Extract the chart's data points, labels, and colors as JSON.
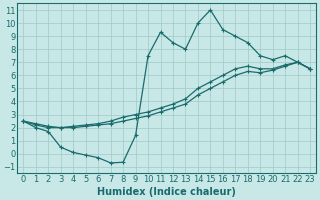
{
  "title": "",
  "xlabel": "Humidex (Indice chaleur)",
  "bg_color": "#c8e8e8",
  "line_color": "#1a6b6b",
  "marker": "+",
  "xlim": [
    -0.5,
    23.5
  ],
  "ylim": [
    -1.5,
    11.5
  ],
  "xticks": [
    0,
    1,
    2,
    3,
    4,
    5,
    6,
    7,
    8,
    9,
    10,
    11,
    12,
    13,
    14,
    15,
    16,
    17,
    18,
    19,
    20,
    21,
    22,
    23
  ],
  "yticks": [
    -1,
    0,
    1,
    2,
    3,
    4,
    5,
    6,
    7,
    8,
    9,
    10,
    11
  ],
  "grid_color": "#a0c8c8",
  "font_size": 6,
  "line1_x": [
    0,
    1,
    2,
    3,
    4,
    5,
    6,
    7,
    8,
    9,
    10,
    11,
    12,
    13,
    14,
    15,
    16,
    17,
    18,
    19,
    20,
    21,
    22,
    23
  ],
  "line1_y": [
    2.5,
    2.0,
    1.7,
    0.5,
    0.1,
    -0.1,
    -0.3,
    -0.7,
    -0.65,
    1.4,
    7.5,
    9.3,
    8.5,
    8.0,
    10.0,
    11.0,
    9.5,
    9.0,
    8.5,
    7.5,
    7.2,
    7.5,
    7.0,
    6.5
  ],
  "line2_x": [
    0,
    1,
    2,
    3,
    4,
    5,
    6,
    7,
    8,
    9,
    10,
    11,
    12,
    13,
    14,
    15,
    16,
    17,
    18,
    19,
    20,
    21,
    22,
    23
  ],
  "line2_y": [
    2.5,
    2.2,
    2.0,
    2.0,
    2.1,
    2.2,
    2.3,
    2.5,
    2.8,
    3.0,
    3.2,
    3.5,
    3.8,
    4.2,
    5.0,
    5.5,
    6.0,
    6.5,
    6.7,
    6.5,
    6.5,
    6.8,
    7.0,
    6.5
  ],
  "line3_x": [
    0,
    1,
    2,
    3,
    4,
    5,
    6,
    7,
    8,
    9,
    10,
    11,
    12,
    13,
    14,
    15,
    16,
    17,
    18,
    19,
    20,
    21,
    22,
    23
  ],
  "line3_y": [
    2.5,
    2.3,
    2.1,
    2.0,
    2.0,
    2.1,
    2.2,
    2.3,
    2.5,
    2.7,
    2.9,
    3.2,
    3.5,
    3.8,
    4.5,
    5.0,
    5.5,
    6.0,
    6.3,
    6.2,
    6.4,
    6.7,
    7.0,
    6.5
  ]
}
